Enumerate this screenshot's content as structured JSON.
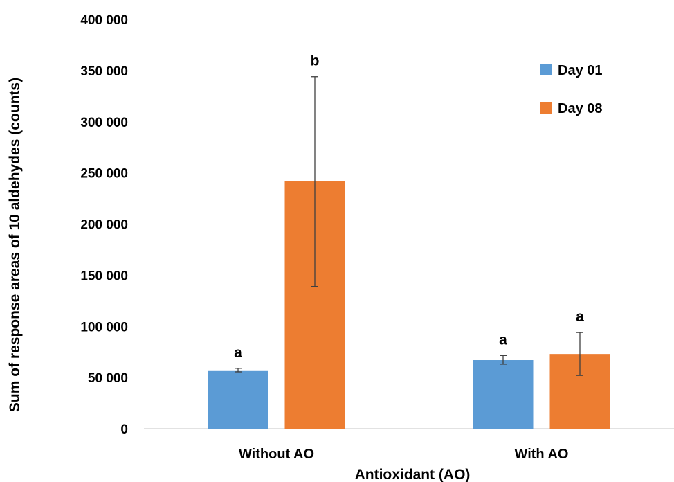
{
  "chart_data": {
    "type": "bar",
    "title": "",
    "xlabel": "Antioxidant (AO)",
    "ylabel": "Sum of response areas of 10 aldehydes (counts)",
    "ylim": [
      0,
      400000
    ],
    "yticks": [
      0,
      50000,
      100000,
      150000,
      200000,
      250000,
      300000,
      350000,
      400000
    ],
    "ytick_labels": [
      "0",
      "50 000",
      "100 000",
      "150 000",
      "200 000",
      "250 000",
      "300 000",
      "350 000",
      "400 000"
    ],
    "categories": [
      "Without AO",
      "With AO"
    ],
    "series": [
      {
        "name": "Day 01",
        "color": "#5B9BD5",
        "values": [
          57000,
          67000
        ],
        "error": [
          [
            55500,
            59000
          ],
          [
            63000,
            71500
          ]
        ],
        "labels": [
          "a",
          "a"
        ]
      },
      {
        "name": "Day 08",
        "color": "#ED7D31",
        "values": [
          242000,
          73000
        ],
        "error": [
          [
            139000,
            344000
          ],
          [
            52000,
            94000
          ]
        ],
        "labels": [
          "b",
          "a"
        ]
      }
    ],
    "grid": false,
    "legend": "top-right"
  }
}
